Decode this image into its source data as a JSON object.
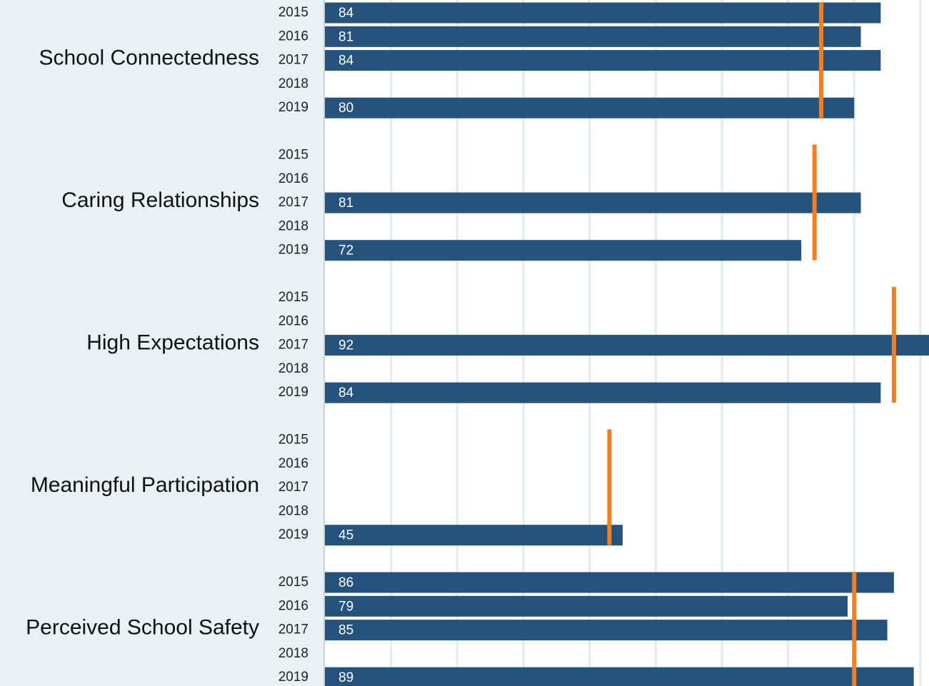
{
  "chart_data": {
    "type": "bar",
    "categories": [
      "2015",
      "2016",
      "2017",
      "2018",
      "2019"
    ],
    "groups": [
      {
        "label": "School Connectedness",
        "values": [
          84,
          81,
          84,
          null,
          80
        ],
        "benchmark": 75
      },
      {
        "label": "Caring Relationships",
        "values": [
          null,
          null,
          81,
          null,
          72
        ],
        "benchmark": 74
      },
      {
        "label": "High Expectations",
        "values": [
          null,
          null,
          92,
          null,
          84
        ],
        "benchmark": 86
      },
      {
        "label": "Meaningful Participation",
        "values": [
          null,
          null,
          null,
          null,
          45
        ],
        "benchmark": 43
      },
      {
        "label": "Perceived School Safety",
        "values": [
          86,
          79,
          85,
          null,
          89
        ],
        "benchmark": 80
      }
    ],
    "color": "#26527e",
    "benchmark_color": "#f47f20",
    "xlim": [
      0,
      91.3
    ],
    "xticks": [
      0,
      10,
      20,
      30,
      40,
      50,
      60,
      70,
      80,
      90
    ],
    "grid": true
  }
}
